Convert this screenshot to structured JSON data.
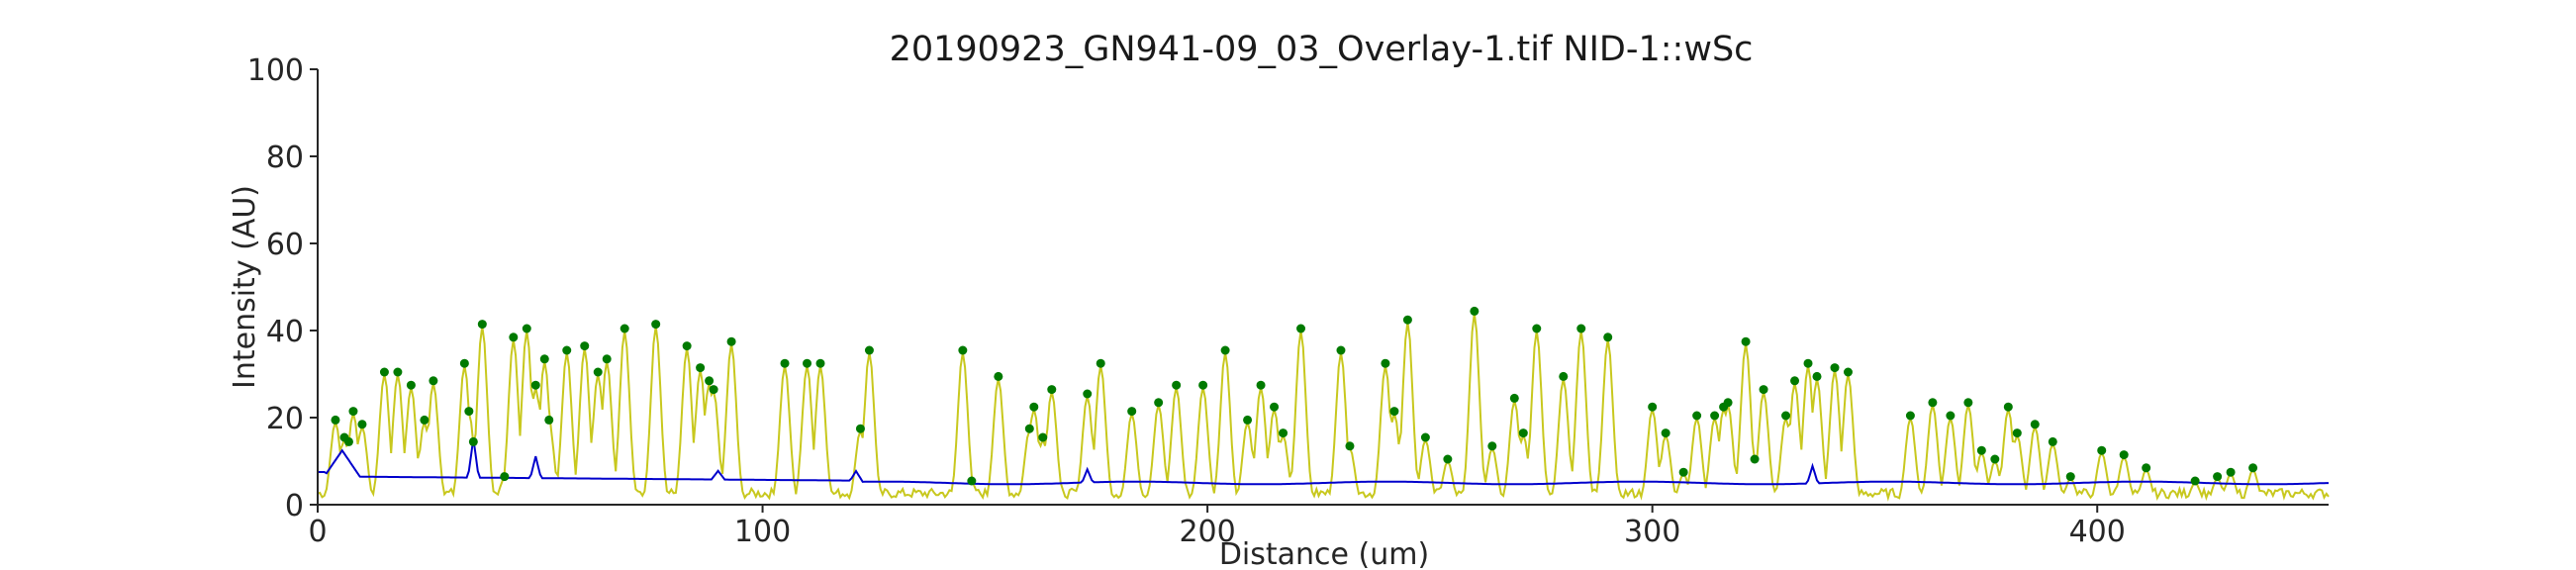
{
  "chart_data": {
    "type": "line",
    "title": "20190923_GN941-09_03_Overlay-1.tif NID-1::wSc",
    "xlabel": "Distance (um)",
    "ylabel": "Intensity (AU)",
    "xlim": [
      0,
      452
    ],
    "ylim": [
      0,
      100
    ],
    "xticks": [
      0,
      100,
      200,
      300,
      400
    ],
    "yticks": [
      0,
      20,
      40,
      60,
      80,
      100
    ],
    "grid": false,
    "colors": {
      "signal": "#c8c81e",
      "background": "#0000cc",
      "peaks": "#007a00",
      "axis": "#262626"
    },
    "peaks": {
      "x": [
        4,
        6,
        7,
        8,
        10,
        15,
        18,
        21,
        24,
        26,
        33,
        34,
        35,
        37,
        42,
        44,
        47,
        49,
        51,
        52,
        56,
        60,
        63,
        65,
        69,
        76,
        83,
        86,
        88,
        89,
        93,
        105,
        110,
        113,
        122,
        124,
        145,
        147,
        153,
        160,
        161,
        163,
        165,
        173,
        176,
        183,
        189,
        193,
        199,
        204,
        209,
        212,
        215,
        217,
        221,
        230,
        232,
        240,
        242,
        245,
        249,
        254,
        260,
        264,
        269,
        271,
        274,
        280,
        284,
        290,
        300,
        303,
        307,
        310,
        314,
        316,
        317,
        321,
        323,
        325,
        330,
        332,
        335,
        337,
        341,
        344,
        358,
        363,
        367,
        371,
        374,
        377,
        380,
        382,
        386,
        390,
        394,
        401,
        406,
        411,
        422,
        427,
        430,
        435
      ],
      "y": [
        19,
        15,
        14,
        21,
        18,
        30,
        30,
        27,
        19,
        28,
        32,
        21,
        14,
        41,
        6,
        38,
        40,
        27,
        33,
        19,
        35,
        36,
        30,
        33,
        40,
        41,
        36,
        31,
        28,
        26,
        37,
        32,
        32,
        32,
        17,
        35,
        35,
        5,
        29,
        17,
        22,
        15,
        26,
        25,
        32,
        21,
        23,
        27,
        27,
        35,
        19,
        27,
        22,
        16,
        40,
        35,
        13,
        32,
        21,
        42,
        15,
        10,
        44,
        13,
        24,
        16,
        40,
        29,
        40,
        38,
        22,
        16,
        7,
        20,
        20,
        22,
        23,
        37,
        10,
        26,
        20,
        28,
        32,
        29,
        31,
        30,
        20,
        23,
        20,
        23,
        12,
        10,
        22,
        16,
        18,
        14,
        6,
        12,
        11,
        8,
        5,
        6,
        7,
        8
      ]
    },
    "series": [
      {
        "name": "",
        "role": "signal"
      },
      {
        "name": "",
        "role": "background"
      }
    ]
  }
}
